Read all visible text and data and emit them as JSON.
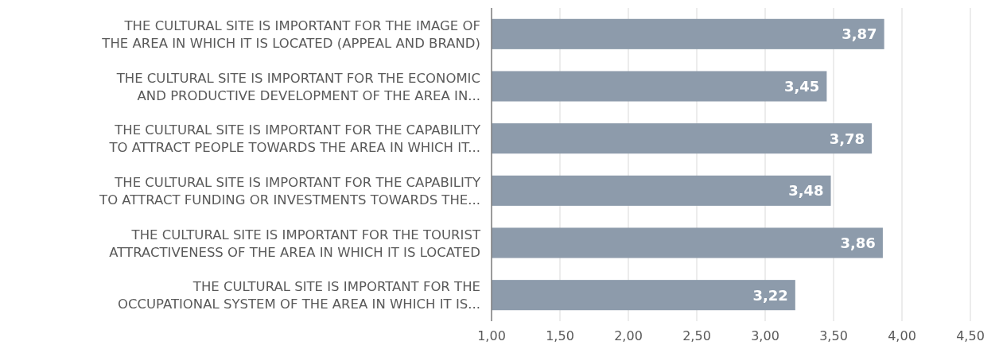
{
  "chart_data": {
    "type": "bar",
    "orientation": "horizontal",
    "categories": [
      "THE CULTURAL SITE IS IMPORTANT FOR THE IMAGE OF\nTHE AREA IN WHICH IT IS LOCATED (APPEAL AND BRAND)",
      "THE CULTURAL SITE IS IMPORTANT FOR THE ECONOMIC\nAND PRODUCTIVE DEVELOPMENT OF THE AREA IN...",
      "THE CULTURAL SITE IS IMPORTANT FOR THE CAPABILITY\nTO ATTRACT PEOPLE TOWARDS THE AREA IN WHICH IT...",
      "THE CULTURAL SITE IS IMPORTANT FOR THE CAPABILITY\nTO ATTRACT FUNDING OR INVESTMENTS TOWARDS THE...",
      "THE CULTURAL SITE IS IMPORTANT FOR THE TOURIST\nATTRACTIVENESS OF THE AREA IN WHICH IT IS LOCATED",
      "THE CULTURAL SITE IS IMPORTANT FOR THE\nOCCUPATIONAL SYSTEM OF THE AREA IN WHICH IT IS..."
    ],
    "values": [
      3.87,
      3.45,
      3.78,
      3.48,
      3.86,
      3.22
    ],
    "value_labels": [
      "3,87",
      "3,45",
      "3,78",
      "3,48",
      "3,86",
      "3,22"
    ],
    "color": "#8d9bab",
    "xlim": [
      1,
      4.5
    ],
    "xticks": [
      {
        "value": 1,
        "label": "1,00"
      },
      {
        "value": 1.5,
        "label": "1,50"
      },
      {
        "value": 2,
        "label": "2,00"
      },
      {
        "value": 2.5,
        "label": "2,50"
      },
      {
        "value": 3,
        "label": "3,00"
      },
      {
        "value": 3.5,
        "label": "3,50"
      },
      {
        "value": 4,
        "label": "4,00"
      },
      {
        "value": 4.5,
        "label": "4,50"
      }
    ],
    "grid": "x"
  }
}
